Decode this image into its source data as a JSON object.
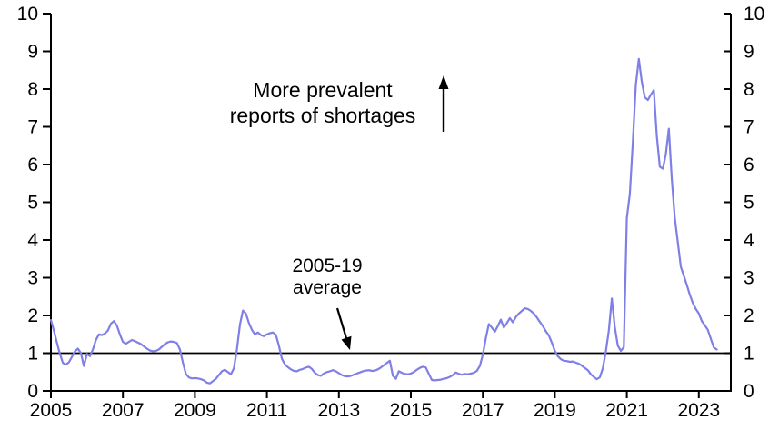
{
  "page": {
    "background": "#ffffff",
    "text_color": "#000000"
  },
  "chart_data": {
    "type": "line",
    "title": "",
    "grid": false,
    "legend": false,
    "x_axis": {
      "tick_labels": [
        "2005",
        "2007",
        "2009",
        "2011",
        "2013",
        "2015",
        "2017",
        "2019",
        "2021",
        "2023"
      ],
      "range_years": [
        2005,
        2023.9
      ]
    },
    "y_axis": {
      "ticks": [
        0,
        1,
        2,
        3,
        4,
        5,
        6,
        7,
        8,
        9,
        10
      ],
      "range": [
        0,
        10
      ],
      "sides": "both"
    },
    "reference_line": {
      "value": 1,
      "label": "2005-19 average",
      "color": "#000000"
    },
    "annotations": [
      {
        "id": "more-prevalent",
        "lines": [
          "More prevalent",
          "reports of shortages"
        ],
        "arrow": "up"
      },
      {
        "id": "average",
        "lines": [
          "2005-19",
          "average"
        ],
        "arrow": "down-to-reference-line"
      }
    ],
    "series": [
      {
        "name": "shortage-reports-index",
        "color": "#7f7fe6",
        "x_start_year": 2005,
        "x_step": "monthly",
        "x_end": "2023-07",
        "values": [
          1.88,
          1.6,
          1.28,
          0.98,
          0.74,
          0.7,
          0.76,
          0.9,
          1.05,
          1.12,
          1.0,
          0.66,
          0.98,
          0.92,
          1.1,
          1.35,
          1.5,
          1.48,
          1.52,
          1.6,
          1.78,
          1.85,
          1.73,
          1.5,
          1.3,
          1.25,
          1.3,
          1.35,
          1.32,
          1.28,
          1.24,
          1.18,
          1.12,
          1.07,
          1.05,
          1.06,
          1.1,
          1.17,
          1.24,
          1.29,
          1.31,
          1.3,
          1.27,
          1.1,
          0.75,
          0.45,
          0.36,
          0.33,
          0.34,
          0.33,
          0.31,
          0.28,
          0.22,
          0.2,
          0.26,
          0.32,
          0.42,
          0.52,
          0.56,
          0.5,
          0.44,
          0.6,
          1.1,
          1.75,
          2.13,
          2.05,
          1.8,
          1.62,
          1.5,
          1.55,
          1.48,
          1.45,
          1.5,
          1.53,
          1.55,
          1.48,
          1.2,
          0.85,
          0.7,
          0.63,
          0.57,
          0.53,
          0.52,
          0.56,
          0.58,
          0.62,
          0.64,
          0.58,
          0.48,
          0.42,
          0.4,
          0.46,
          0.5,
          0.52,
          0.55,
          0.52,
          0.47,
          0.42,
          0.39,
          0.38,
          0.4,
          0.43,
          0.46,
          0.49,
          0.52,
          0.54,
          0.55,
          0.53,
          0.54,
          0.57,
          0.62,
          0.68,
          0.74,
          0.8,
          0.4,
          0.32,
          0.52,
          0.48,
          0.45,
          0.44,
          0.46,
          0.5,
          0.56,
          0.61,
          0.64,
          0.62,
          0.45,
          0.29,
          0.28,
          0.29,
          0.3,
          0.32,
          0.34,
          0.37,
          0.42,
          0.49,
          0.45,
          0.43,
          0.45,
          0.44,
          0.46,
          0.48,
          0.53,
          0.66,
          0.96,
          1.4,
          1.77,
          1.68,
          1.57,
          1.72,
          1.89,
          1.68,
          1.8,
          1.93,
          1.82,
          1.96,
          2.05,
          2.12,
          2.19,
          2.17,
          2.12,
          2.05,
          1.95,
          1.83,
          1.72,
          1.58,
          1.47,
          1.28,
          1.06,
          0.92,
          0.84,
          0.8,
          0.79,
          0.77,
          0.78,
          0.75,
          0.72,
          0.67,
          0.61,
          0.55,
          0.44,
          0.37,
          0.31,
          0.36,
          0.6,
          1.04,
          1.6,
          2.45,
          1.69,
          1.2,
          1.06,
          1.16,
          4.58,
          5.22,
          6.59,
          8.11,
          8.8,
          8.19,
          7.78,
          7.71,
          7.85,
          7.97,
          6.75,
          5.94,
          5.89,
          6.27,
          6.95,
          5.6,
          4.58,
          3.94,
          3.29,
          3.05,
          2.81,
          2.55,
          2.33,
          2.17,
          2.05,
          1.85,
          1.74,
          1.62,
          1.38,
          1.15,
          1.1
        ]
      }
    ]
  }
}
